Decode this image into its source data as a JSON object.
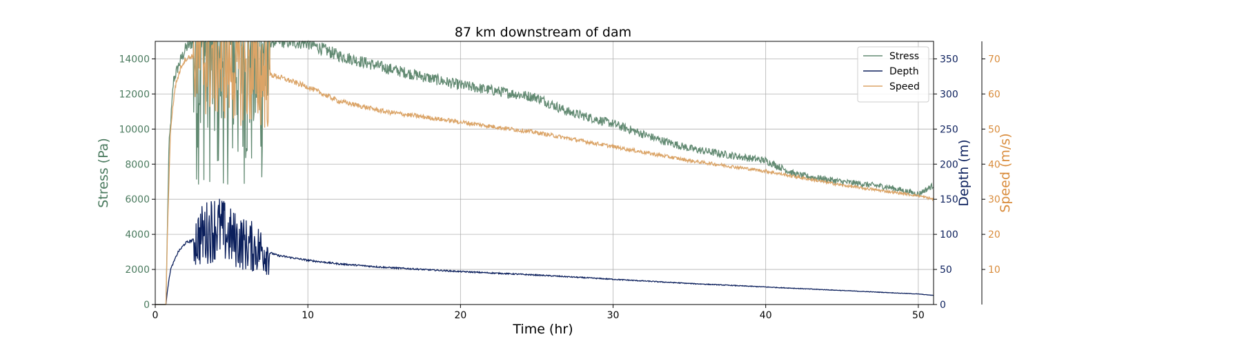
{
  "chart_data": {
    "type": "line",
    "title": "87 km downstream of dam",
    "xlabel": "Time (hr)",
    "xlim": [
      0,
      51
    ],
    "xticks": [
      0,
      10,
      20,
      30,
      40,
      50
    ],
    "grid": true,
    "legend_position": "top-right",
    "axes": {
      "stress": {
        "label": "Stress (Pa)",
        "side": "left",
        "color": "#4a7a5e",
        "ylim": [
          0,
          15000
        ],
        "ticks": [
          0,
          2000,
          4000,
          6000,
          8000,
          10000,
          12000,
          14000
        ]
      },
      "depth": {
        "label": "Depth (m)",
        "side": "right",
        "color": "#0b1f5c",
        "ylim": [
          0,
          375
        ],
        "ticks": [
          0,
          50,
          100,
          150,
          200,
          250,
          300,
          350
        ]
      },
      "speed": {
        "label": "Speed (m/s)",
        "side": "right-offset",
        "color": "#d98c3c",
        "ylim": [
          0,
          75
        ],
        "ticks": [
          10,
          20,
          30,
          40,
          50,
          60,
          70
        ]
      }
    },
    "series": [
      {
        "name": "Stress",
        "axis": "stress",
        "color": "#628a72",
        "x": [
          0,
          0.7,
          0.9,
          1.2,
          1.6,
          2.0,
          2.5,
          3.0,
          4.0,
          5.0,
          6.0,
          7.0,
          8.0,
          10,
          12,
          15,
          20,
          25,
          27,
          30,
          33,
          35,
          37,
          40,
          42,
          45,
          48,
          50,
          51
        ],
        "y": [
          0,
          0,
          9000,
          12800,
          13800,
          14600,
          15000,
          15000,
          15000,
          15000,
          15000,
          15000,
          15000,
          14900,
          14200,
          13500,
          12500,
          11800,
          11000,
          10300,
          9400,
          8900,
          8600,
          8200,
          7400,
          7000,
          6700,
          6300,
          6800
        ]
      },
      {
        "name": "Depth",
        "axis": "depth",
        "color": "#0b1f5c",
        "x": [
          0,
          0.7,
          0.8,
          1.0,
          1.5,
          2.0,
          2.5,
          3.0,
          4.0,
          5.0,
          6.0,
          7.0,
          8.0,
          10,
          12,
          15,
          20,
          25,
          30,
          35,
          40,
          45,
          50,
          51
        ],
        "y": [
          0,
          0,
          20,
          50,
          75,
          88,
          92,
          98,
          112,
          95,
          85,
          78,
          70,
          63,
          58,
          53,
          47,
          42,
          36,
          30,
          25,
          20,
          15,
          13
        ]
      },
      {
        "name": "Speed",
        "axis": "speed",
        "color": "#dba467",
        "x": [
          0,
          0.7,
          0.8,
          1.0,
          1.3,
          1.7,
          2.0,
          2.5,
          3.0,
          4.0,
          5.0,
          6.0,
          7.0,
          8.0,
          10,
          12,
          15,
          20,
          25,
          30,
          35,
          40,
          45,
          50,
          51
        ],
        "y": [
          0,
          0,
          20,
          50,
          62,
          68,
          70,
          71,
          71,
          70,
          69,
          67,
          66,
          65,
          62,
          58,
          55,
          52,
          49,
          45,
          41,
          38,
          34,
          31,
          30
        ]
      }
    ]
  }
}
